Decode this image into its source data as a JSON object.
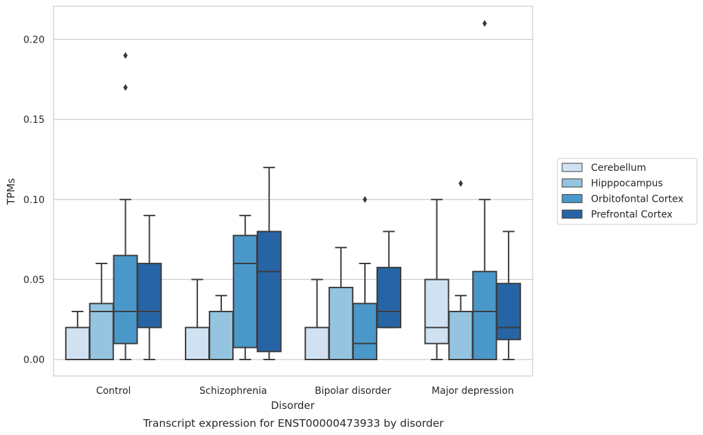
{
  "chart_data": {
    "type": "box",
    "caption": "Transcript expression for ENST00000473933 by disorder",
    "xlabel": "Disorder",
    "ylabel": "TPMs",
    "ylim": [
      -0.01,
      0.22
    ],
    "yticks": [
      "0.00",
      "0.05",
      "0.10",
      "0.15",
      "0.20"
    ],
    "grid": "horizontal",
    "legend_position": "right",
    "categories": [
      "Control",
      "Schizophrenia",
      "Bipolar disorder",
      "Major depression"
    ],
    "series": [
      {
        "name": "Cerebellum",
        "color": "#d0e1f2",
        "boxes": [
          {
            "whislo": 0.0,
            "q1": 0.0,
            "med": 0.0,
            "q3": 0.02,
            "whishi": 0.03,
            "fliers": []
          },
          {
            "whislo": 0.0,
            "q1": 0.0,
            "med": 0.0,
            "q3": 0.02,
            "whishi": 0.05,
            "fliers": []
          },
          {
            "whislo": 0.0,
            "q1": 0.0,
            "med": 0.0,
            "q3": 0.02,
            "whishi": 0.05,
            "fliers": []
          },
          {
            "whislo": 0.0,
            "q1": 0.01,
            "med": 0.02,
            "q3": 0.05,
            "whishi": 0.1,
            "fliers": []
          }
        ]
      },
      {
        "name": "Hipppocampus",
        "color": "#94c4df",
        "boxes": [
          {
            "whislo": 0.0,
            "q1": 0.0,
            "med": 0.03,
            "q3": 0.035,
            "whishi": 0.06,
            "fliers": []
          },
          {
            "whislo": 0.0,
            "q1": 0.0,
            "med": 0.03,
            "q3": 0.03,
            "whishi": 0.04,
            "fliers": []
          },
          {
            "whislo": 0.0,
            "q1": 0.0,
            "med": 0.0,
            "q3": 0.045,
            "whishi": 0.07,
            "fliers": []
          },
          {
            "whislo": 0.0,
            "q1": 0.0,
            "med": 0.03,
            "q3": 0.03,
            "whishi": 0.04,
            "fliers": [
              0.11
            ]
          }
        ]
      },
      {
        "name": "Orbitofontal Cortex",
        "color": "#4a98c9",
        "boxes": [
          {
            "whislo": 0.0,
            "q1": 0.01,
            "med": 0.03,
            "q3": 0.065,
            "whishi": 0.1,
            "fliers": [
              0.17,
              0.19
            ]
          },
          {
            "whislo": 0.0,
            "q1": 0.0075,
            "med": 0.06,
            "q3": 0.0775,
            "whishi": 0.09,
            "fliers": []
          },
          {
            "whislo": 0.0,
            "q1": 0.0,
            "med": 0.01,
            "q3": 0.035,
            "whishi": 0.06,
            "fliers": [
              0.1
            ]
          },
          {
            "whislo": 0.0,
            "q1": 0.0,
            "med": 0.03,
            "q3": 0.055,
            "whishi": 0.1,
            "fliers": [
              0.21
            ]
          }
        ]
      },
      {
        "name": "Prefrontal Cortex",
        "color": "#2764a5",
        "boxes": [
          {
            "whislo": 0.0,
            "q1": 0.02,
            "med": 0.03,
            "q3": 0.06,
            "whishi": 0.09,
            "fliers": []
          },
          {
            "whislo": 0.0,
            "q1": 0.005,
            "med": 0.055,
            "q3": 0.08,
            "whishi": 0.12,
            "fliers": []
          },
          {
            "whislo": 0.02,
            "q1": 0.02,
            "med": 0.03,
            "q3": 0.0575,
            "whishi": 0.08,
            "fliers": []
          },
          {
            "whislo": 0.0,
            "q1": 0.0125,
            "med": 0.02,
            "q3": 0.0475,
            "whishi": 0.08,
            "fliers": []
          }
        ]
      }
    ]
  }
}
